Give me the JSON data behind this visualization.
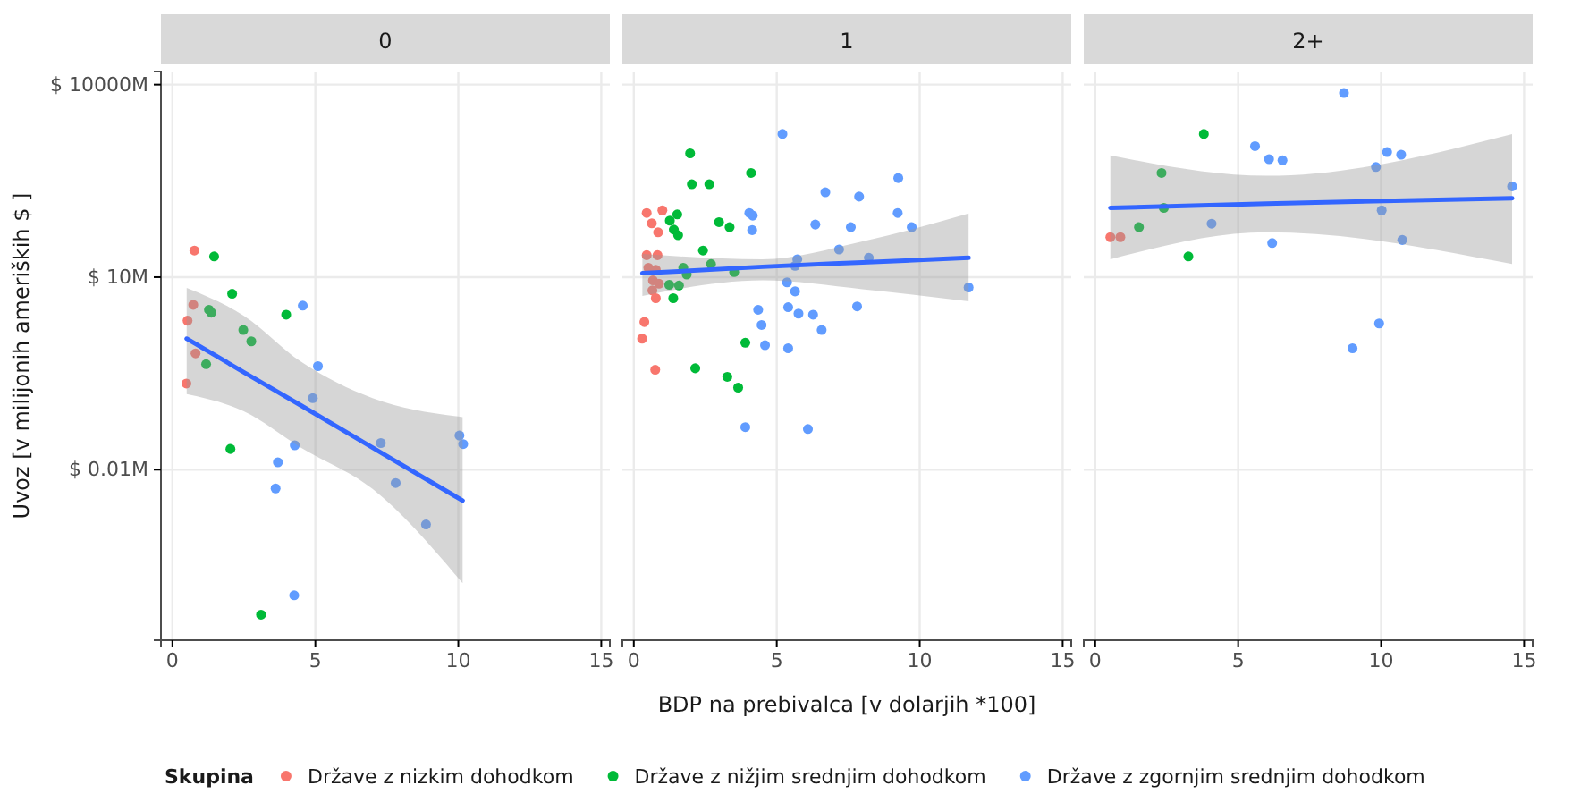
{
  "chart_data": [
    {
      "type": "scatter",
      "title": "0",
      "ylabel": "Uvoz [v milijonih ameriških $ ]",
      "log": "y",
      "grid": true,
      "marker": "circle",
      "legend": "bottom",
      "legend_title": "Skupina",
      "xlim": [
        -0.4,
        15.3
      ],
      "xticks": [
        0,
        5,
        10,
        15
      ],
      "ylim": [
        2.2e-05,
        16000
      ],
      "yticks": [
        {
          "value": 0.01,
          "label": "$ 0.01M"
        },
        {
          "value": 10,
          "label": "$ 10M"
        },
        {
          "value": 10000,
          "label": "$ 10000M"
        }
      ],
      "series": [
        {
          "name": "Države z nizkim dohodkom",
          "color": "#f8766d",
          "x": [
            0.77,
            0.73,
            0.53,
            0.81,
            0.49
          ],
          "values": [
            26,
            3.7,
            2.1,
            0.65,
            0.22
          ]
        },
        {
          "name": "Države z nižjim srednjim dohodkom",
          "color": "#00ba38",
          "x": [
            1.46,
            2.09,
            1.28,
            1.36,
            2.48,
            2.76,
            3.98,
            1.18,
            2.03,
            3.1
          ],
          "values": [
            21,
            5.5,
            3.1,
            2.8,
            1.5,
            1.0,
            2.6,
            0.44,
            0.021,
            5.5e-05
          ]
        },
        {
          "name": "Države z zgornjim srednjim dohodkom",
          "color": "#619cff",
          "x": [
            4.56,
            5.09,
            4.91,
            4.28,
            3.69,
            3.61,
            7.29,
            7.81,
            10.04,
            10.17,
            8.87,
            4.26
          ],
          "values": [
            3.6,
            0.41,
            0.13,
            0.024,
            0.013,
            0.0051,
            0.026,
            0.0062,
            0.034,
            0.025,
            0.0014,
            0.00011
          ]
        },
        {
          "type": "line",
          "marker": "none",
          "color": "#3366ff",
          "x": [
            0.5,
            2.5,
            4.5,
            7,
            10.15
          ],
          "values": [
            1.1,
            0.33,
            0.1,
            0.022,
            0.0033
          ],
          "upper": [
            6.8,
            2.5,
            0.48,
            0.13,
            0.066
          ],
          "lower": [
            0.15,
            0.081,
            0.022,
            0.005,
            0.00017
          ]
        }
      ]
    },
    {
      "type": "scatter",
      "title": "1",
      "xlabel": "BDP na prebivalca [v dolarjih *100]",
      "log": "y",
      "grid": true,
      "marker": "circle",
      "tick_labels": "x",
      "xlim": [
        -0.4,
        15.3
      ],
      "xticks": [
        0,
        5,
        10,
        15
      ],
      "ylim": [
        2.2e-05,
        16000
      ],
      "yticks": [
        0.01,
        10,
        10000
      ],
      "series": [
        {
          "color": "#f8766d",
          "x": [
            0.45,
            1.0,
            0.63,
            0.85,
            0.45,
            0.83,
            0.51,
            0.77,
            0.67,
            0.88,
            0.65,
            0.77,
            0.37,
            0.29,
            0.75
          ],
          "values": [
            100,
            110,
            69,
            50,
            22,
            22,
            14,
            13,
            8.9,
            7.9,
            6.2,
            4.7,
            2.0,
            1.1,
            0.36
          ]
        },
        {
          "color": "#00ba38",
          "x": [
            1.97,
            2.03,
            2.64,
            4.1,
            1.52,
            1.26,
            1.4,
            1.55,
            2.98,
            3.35,
            2.42,
            2.7,
            1.73,
            1.85,
            3.51,
            1.24,
            1.58,
            1.38,
            3.9,
            2.15,
            3.27,
            3.65
          ],
          "values": [
            850,
            280,
            280,
            420,
            95,
            76,
            55,
            45,
            72,
            60,
            26,
            16,
            14,
            11,
            12,
            7.6,
            7.4,
            4.7,
            0.95,
            0.38,
            0.28,
            0.19
          ]
        },
        {
          "color": "#619cff",
          "x": [
            5.2,
            6.7,
            7.88,
            9.25,
            9.23,
            9.72,
            4.04,
            4.16,
            4.14,
            6.35,
            7.59,
            7.18,
            8.22,
            5.72,
            5.64,
            5.36,
            5.64,
            11.71,
            7.81,
            4.35,
            5.4,
            5.76,
            6.27,
            6.57,
            4.47,
            4.59,
            5.4,
            3.9,
            6.09
          ],
          "values": [
            1700,
            210,
            180,
            350,
            100,
            60,
            100,
            91,
            54,
            66,
            60,
            27,
            20,
            19,
            15,
            8.3,
            6.0,
            6.9,
            3.5,
            3.1,
            3.4,
            2.7,
            2.6,
            1.5,
            1.8,
            0.87,
            0.78,
            0.046,
            0.043
          ]
        },
        {
          "type": "line",
          "marker": "none",
          "color": "#3366ff",
          "x": [
            0.3,
            4.5,
            8,
            11.71
          ],
          "values": [
            11.5,
            14.5,
            17,
            20
          ],
          "upper": [
            23,
            19,
            36,
            98
          ],
          "lower": [
            5.1,
            8.9,
            6.5,
            4.2
          ]
        }
      ]
    },
    {
      "type": "scatter",
      "title": "2+",
      "log": "y",
      "grid": true,
      "marker": "circle",
      "tick_labels": "x",
      "xlim": [
        -0.4,
        15.3
      ],
      "xticks": [
        0,
        5,
        10,
        15
      ],
      "ylim": [
        2.2e-05,
        16000
      ],
      "yticks": [
        0.01,
        10,
        10000
      ],
      "series": [
        {
          "color": "#f8766d",
          "x": [
            0.53,
            0.88
          ],
          "values": [
            42,
            42
          ]
        },
        {
          "color": "#00ba38",
          "x": [
            3.8,
            2.32,
            2.4,
            1.53,
            3.26
          ],
          "values": [
            1700,
            420,
            120,
            60,
            21
          ]
        },
        {
          "color": "#619cff",
          "x": [
            8.7,
            5.59,
            6.08,
            6.55,
            10.21,
            10.7,
            9.82,
            14.58,
            4.07,
            10.02,
            6.19,
            10.74,
            9.93,
            9.0
          ],
          "values": [
            7400,
            1100,
            690,
            660,
            890,
            810,
            520,
            260,
            68,
            110,
            34,
            38,
            1.9,
            0.78
          ]
        },
        {
          "type": "line",
          "marker": "none",
          "color": "#3366ff",
          "x": [
            0.53,
            6,
            14.58
          ],
          "values": [
            120,
            140,
            170
          ],
          "upper": [
            790,
            380,
            1700
          ],
          "lower": [
            19,
            50,
            16
          ]
        }
      ]
    }
  ]
}
